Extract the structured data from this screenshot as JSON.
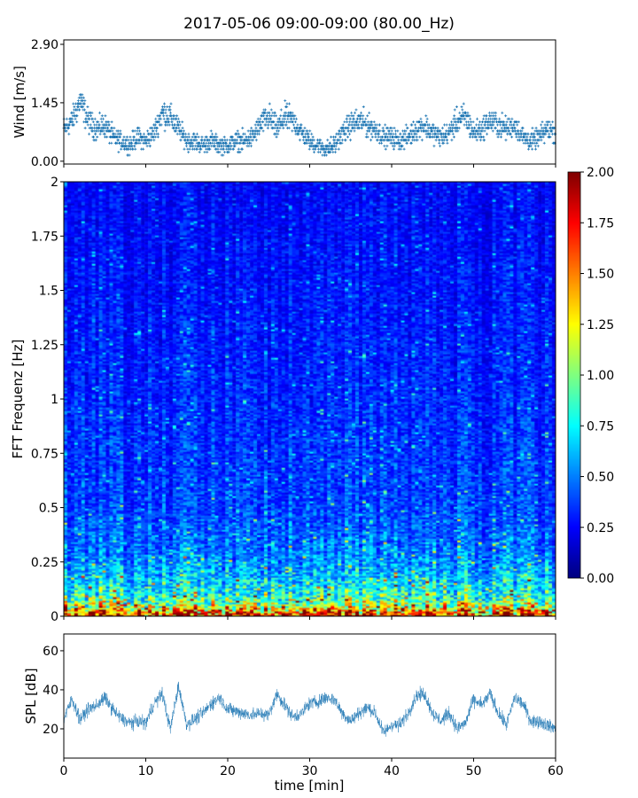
{
  "title": "2017-05-06 09:00-09:00 (80.00_Hz)",
  "chart_data": [
    {
      "type": "scatter",
      "ylabel": "Wind [m/s]",
      "yticks": [
        "0.00",
        "1.45",
        "2.90"
      ],
      "ylim": [
        -0.07,
        3.01
      ],
      "xlim": [
        0,
        60
      ],
      "marker": "+",
      "color": "#1f77b4",
      "x_minutes": [
        0,
        1,
        2,
        3,
        4,
        5,
        6,
        7,
        8,
        9,
        10,
        11,
        12,
        13,
        14,
        15,
        16,
        17,
        18,
        19,
        20,
        21,
        22,
        23,
        24,
        25,
        26,
        27,
        28,
        29,
        30,
        31,
        32,
        33,
        34,
        35,
        36,
        37,
        38,
        39,
        40,
        41,
        42,
        43,
        44,
        45,
        46,
        47,
        48,
        49,
        50,
        51,
        52,
        53,
        54,
        55,
        56,
        57,
        58,
        59,
        60
      ],
      "wind_mean": [
        0.8,
        1.0,
        1.5,
        1.0,
        0.8,
        0.9,
        0.6,
        0.5,
        0.4,
        0.6,
        0.5,
        0.7,
        1.2,
        1.1,
        0.8,
        0.5,
        0.5,
        0.4,
        0.5,
        0.4,
        0.4,
        0.5,
        0.5,
        0.6,
        0.9,
        1.1,
        0.8,
        1.1,
        1.0,
        0.7,
        0.5,
        0.4,
        0.3,
        0.4,
        0.7,
        0.9,
        1.0,
        0.9,
        0.8,
        0.6,
        0.6,
        0.5,
        0.6,
        0.8,
        0.9,
        0.7,
        0.6,
        0.7,
        1.0,
        1.1,
        0.7,
        0.8,
        1.0,
        0.9,
        0.8,
        0.9,
        0.6,
        0.5,
        0.6,
        0.8,
        0.7
      ]
    },
    {
      "type": "heatmap",
      "ylabel": "FFT Frequenz [Hz]",
      "yticks": [
        "0",
        "0.25",
        "0.5",
        "0.75",
        "1",
        "1.25",
        "1.5",
        "1.75",
        "2"
      ],
      "ylim": [
        0,
        2
      ],
      "xlim": [
        0,
        60
      ],
      "colormap": "jet",
      "clim": [
        0,
        2
      ],
      "colorbar_ticks": [
        "0.00",
        "0.25",
        "0.50",
        "0.75",
        "1.00",
        "1.25",
        "1.50",
        "1.75",
        "2.00"
      ],
      "profile_freq_hz": [
        0,
        0.03,
        0.06,
        0.1,
        0.2,
        0.3,
        0.5,
        1.0,
        1.5,
        2.0
      ],
      "profile_mean_intensity": [
        1.8,
        1.4,
        1.0,
        0.8,
        0.6,
        0.48,
        0.38,
        0.32,
        0.28,
        0.25
      ]
    },
    {
      "type": "line",
      "ylabel": "SPL [dB]",
      "xlabel": "time [min]",
      "yticks": [
        "20",
        "40",
        "60"
      ],
      "xticks": [
        "0",
        "10",
        "20",
        "30",
        "40",
        "50",
        "60"
      ],
      "ylim": [
        5,
        68.6
      ],
      "xlim": [
        0,
        60
      ],
      "color": "#1f77b4",
      "x_minutes": [
        0,
        1,
        2,
        3,
        4,
        5,
        6,
        7,
        8,
        9,
        10,
        11,
        12,
        13,
        14,
        15,
        16,
        17,
        18,
        19,
        20,
        21,
        22,
        23,
        24,
        25,
        26,
        27,
        28,
        29,
        30,
        31,
        32,
        33,
        34,
        35,
        36,
        37,
        38,
        39,
        40,
        41,
        42,
        43,
        44,
        45,
        46,
        47,
        48,
        49,
        50,
        51,
        52,
        53,
        54,
        55,
        56,
        57,
        58,
        59,
        60
      ],
      "spl_db": [
        25,
        35,
        25,
        30,
        32,
        36,
        30,
        25,
        23,
        24,
        23,
        33,
        38,
        20,
        42,
        22,
        25,
        28,
        33,
        36,
        30,
        29,
        28,
        27,
        28,
        27,
        38,
        32,
        26,
        28,
        33,
        34,
        36,
        35,
        28,
        24,
        28,
        31,
        28,
        18,
        22,
        22,
        28,
        37,
        38,
        28,
        24,
        28,
        20,
        23,
        35,
        32,
        38,
        28,
        22,
        36,
        33,
        24,
        24,
        22,
        20
      ]
    }
  ]
}
